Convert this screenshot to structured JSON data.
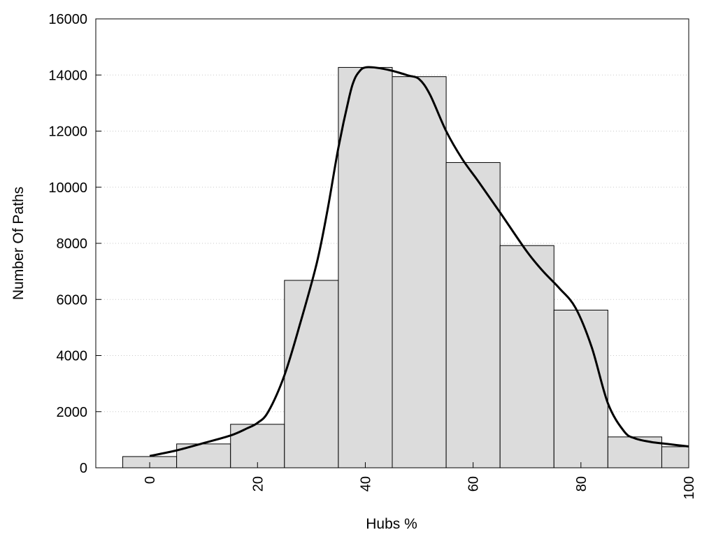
{
  "chart_data": {
    "type": "bar",
    "title": "",
    "xlabel": "Hubs %",
    "ylabel": "Number Of Paths",
    "x_bin_centers": [
      0,
      10,
      20,
      30,
      40,
      50,
      60,
      70,
      80,
      90,
      100
    ],
    "values": [
      400,
      850,
      1550,
      6680,
      14270,
      13940,
      10880,
      7920,
      5620,
      1100,
      750
    ],
    "bin_width": 10,
    "curve": {
      "x": [
        0,
        5,
        10,
        15,
        18,
        20,
        22,
        25,
        28,
        31,
        33,
        35,
        37,
        38,
        39,
        40,
        42,
        45,
        48,
        50,
        52,
        55,
        58,
        61,
        65,
        70,
        73,
        76,
        79,
        82,
        85,
        88,
        90,
        93,
        96,
        100
      ],
      "y": [
        420,
        620,
        880,
        1150,
        1400,
        1600,
        2000,
        3300,
        5200,
        7300,
        9200,
        11400,
        13200,
        13850,
        14150,
        14270,
        14260,
        14150,
        13980,
        13850,
        13300,
        12000,
        11000,
        10200,
        9100,
        7700,
        7000,
        6400,
        5700,
        4300,
        2300,
        1300,
        1050,
        920,
        850,
        760
      ]
    },
    "xlim": [
      -10,
      100
    ],
    "ylim": [
      0,
      16000
    ],
    "x_ticks": [
      "0",
      "20",
      "40",
      "60",
      "80",
      "100"
    ],
    "x_tick_values": [
      0,
      20,
      40,
      60,
      80,
      100
    ],
    "y_ticks": [
      "0",
      "2000",
      "4000",
      "6000",
      "8000",
      "10000",
      "12000",
      "14000",
      "16000"
    ],
    "y_tick_values": [
      0,
      2000,
      4000,
      6000,
      8000,
      10000,
      12000,
      14000,
      16000
    ],
    "grid": "horizontal dotted",
    "legend": "none",
    "colors": {
      "bar_fill": "#dcdcdc",
      "bar_stroke": "#000000",
      "curve": "#000000",
      "grid": "#c8c8c8"
    }
  }
}
